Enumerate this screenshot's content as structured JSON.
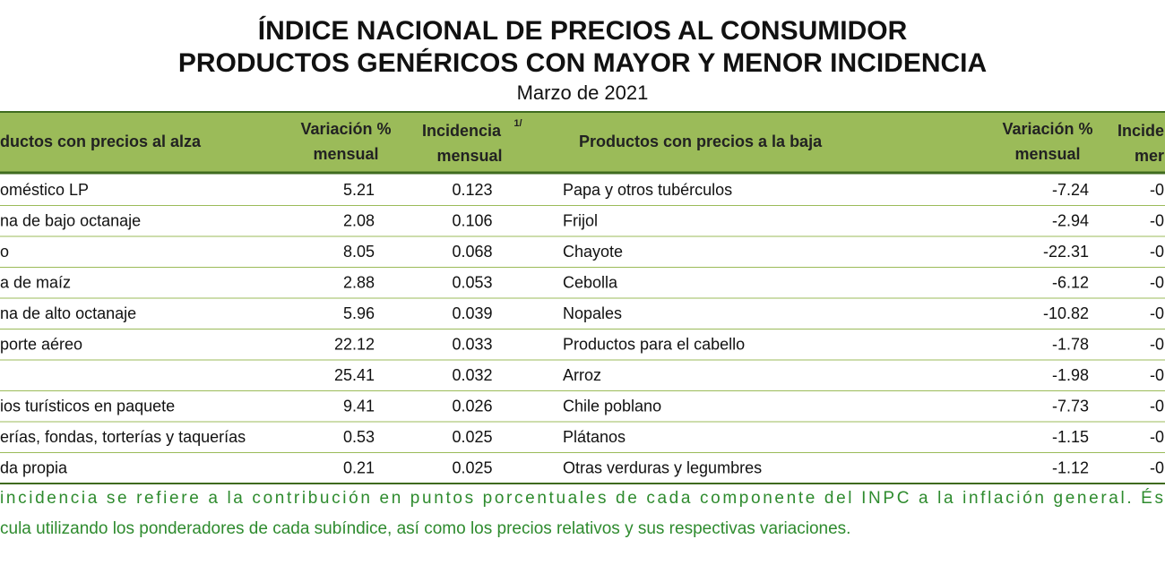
{
  "header": {
    "title_line1": "ÍNDICE NACIONAL DE PRECIOS AL CONSUMIDOR",
    "title_line2": "PRODUCTOS GENÉRICOS CON MAYOR Y MENOR INCIDENCIA",
    "subtitle": "Marzo de 2021"
  },
  "table": {
    "columns": {
      "left_name": "ductos con precios al alza",
      "left_var_1": "Variación %",
      "left_var_2": "mensual",
      "left_inc_1": "Incidencia",
      "left_inc_note": "1/",
      "left_inc_2": "mensual",
      "right_name": "Productos con precios a la baja",
      "right_var_1": "Variación %",
      "right_var_2": "mensual",
      "right_inc_1": "Incide",
      "right_inc_2": "mer"
    },
    "rows": [
      [
        "oméstico LP",
        5.21,
        0.123,
        "Papa y otros tubérculos",
        -7.24,
        "-0"
      ],
      [
        "na de bajo octanaje",
        2.08,
        0.106,
        "Frijol",
        -2.94,
        "-0"
      ],
      [
        "o",
        8.05,
        0.068,
        "Chayote",
        -22.31,
        "-0"
      ],
      [
        "a de maíz",
        2.88,
        0.053,
        "Cebolla",
        -6.12,
        "-0"
      ],
      [
        "na de alto octanaje",
        5.96,
        0.039,
        "Nopales",
        -10.82,
        "-0"
      ],
      [
        "porte aéreo",
        22.12,
        0.033,
        "Productos para el cabello",
        -1.78,
        "-0"
      ],
      [
        null,
        25.41,
        0.032,
        "Arroz",
        -1.98,
        "-0"
      ],
      [
        "ios turísticos en paquete",
        9.41,
        0.026,
        "Chile poblano",
        -7.73,
        "-0"
      ],
      [
        "erías, fondas, torterías y taquerías",
        0.53,
        0.025,
        "Plátanos",
        -1.15,
        "-0"
      ],
      [
        "da propia",
        0.21,
        0.025,
        "Otras verduras y legumbres",
        -1.12,
        "-0"
      ]
    ]
  },
  "footnote": {
    "line1": "incidencia se refiere a la contribución en puntos porcentuales de cada componente del INPC a la inflación general. És",
    "line2": "cula utilizando los ponderadores de cada subíndice, así como los precios relativos y sus respectivas variaciones."
  }
}
